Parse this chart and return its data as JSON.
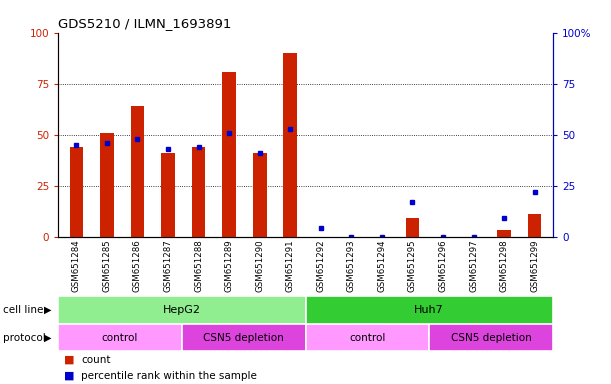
{
  "title": "GDS5210 / ILMN_1693891",
  "samples": [
    "GSM651284",
    "GSM651285",
    "GSM651286",
    "GSM651287",
    "GSM651288",
    "GSM651289",
    "GSM651290",
    "GSM651291",
    "GSM651292",
    "GSM651293",
    "GSM651294",
    "GSM651295",
    "GSM651296",
    "GSM651297",
    "GSM651298",
    "GSM651299"
  ],
  "counts": [
    44,
    51,
    64,
    41,
    44,
    81,
    41,
    90,
    0,
    0,
    0,
    9,
    0,
    0,
    3,
    11
  ],
  "percentile_ranks": [
    45,
    46,
    48,
    43,
    44,
    51,
    41,
    53,
    4,
    0,
    0,
    17,
    0,
    0,
    9,
    22
  ],
  "cell_line_groups": [
    {
      "label": "HepG2",
      "start": 0,
      "end": 8,
      "color": "#90EE90"
    },
    {
      "label": "Huh7",
      "start": 8,
      "end": 16,
      "color": "#33CC33"
    }
  ],
  "protocol_groups": [
    {
      "label": "control",
      "start": 0,
      "end": 4,
      "color": "#FF99FF"
    },
    {
      "label": "CSN5 depletion",
      "start": 4,
      "end": 8,
      "color": "#DD44DD"
    },
    {
      "label": "control",
      "start": 8,
      "end": 12,
      "color": "#FF99FF"
    },
    {
      "label": "CSN5 depletion",
      "start": 12,
      "end": 16,
      "color": "#DD44DD"
    }
  ],
  "bar_color": "#CC2200",
  "dot_color": "#0000CC",
  "ylim": [
    0,
    100
  ],
  "grid_values": [
    25,
    50,
    75
  ],
  "bg_color": "#FFFFFF",
  "tick_color_left": "#CC2200",
  "tick_color_right": "#0000CC"
}
